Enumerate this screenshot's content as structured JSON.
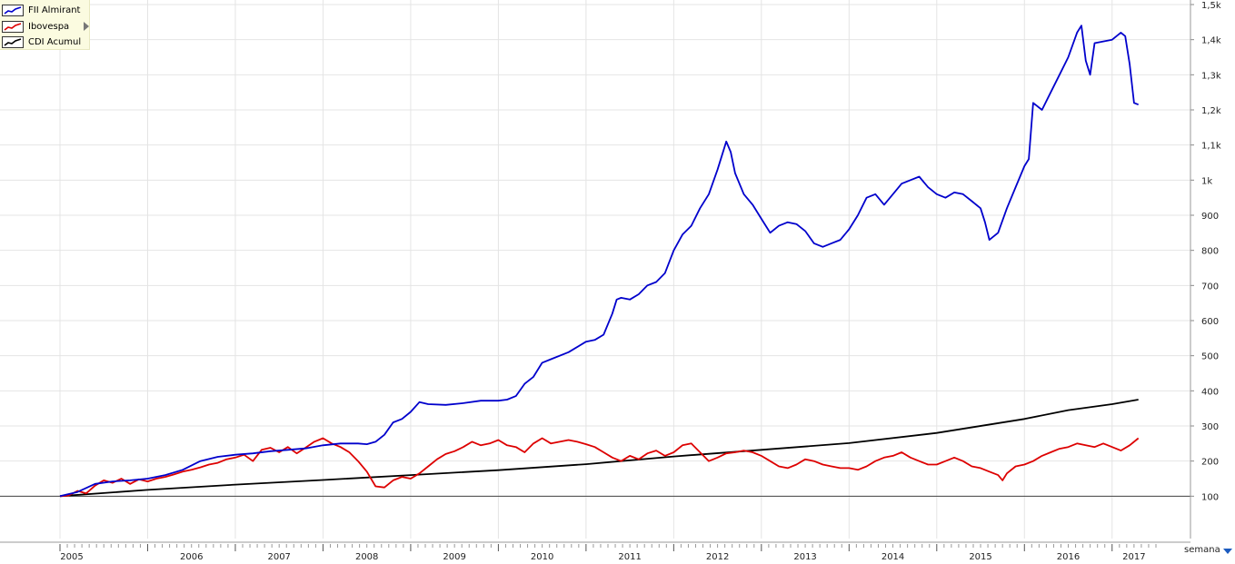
{
  "chart_data": {
    "type": "line",
    "title": "",
    "xlabel": "",
    "ylabel": "",
    "xlim": [
      2005.0,
      2017.5
    ],
    "ylim": [
      0,
      1500
    ],
    "grid": true,
    "legend_position": "top-left",
    "reference_line": 100,
    "y_ticks": [
      {
        "value": 100,
        "label": "100"
      },
      {
        "value": 200,
        "label": "200"
      },
      {
        "value": 300,
        "label": "300"
      },
      {
        "value": 400,
        "label": "400"
      },
      {
        "value": 500,
        "label": "500"
      },
      {
        "value": 600,
        "label": "600"
      },
      {
        "value": 700,
        "label": "700"
      },
      {
        "value": 800,
        "label": "800"
      },
      {
        "value": 900,
        "label": "900"
      },
      {
        "value": 1000,
        "label": "1k"
      },
      {
        "value": 1100,
        "label": "1,1k"
      },
      {
        "value": 1200,
        "label": "1,2k"
      },
      {
        "value": 1300,
        "label": "1,3k"
      },
      {
        "value": 1400,
        "label": "1,4k"
      },
      {
        "value": 1500,
        "label": "1,5k"
      }
    ],
    "x_ticks": [
      {
        "value": 2005.0,
        "label": "2005"
      },
      {
        "value": 2006.0,
        "label": "2006"
      },
      {
        "value": 2007.0,
        "label": "2007"
      },
      {
        "value": 2008.0,
        "label": "2008"
      },
      {
        "value": 2009.0,
        "label": "2009"
      },
      {
        "value": 2010.0,
        "label": "2010"
      },
      {
        "value": 2011.0,
        "label": "2011"
      },
      {
        "value": 2012.0,
        "label": "2012"
      },
      {
        "value": 2013.0,
        "label": "2013"
      },
      {
        "value": 2014.0,
        "label": "2014"
      },
      {
        "value": 2015.0,
        "label": "2015"
      },
      {
        "value": 2016.0,
        "label": "2016"
      },
      {
        "value": 2017.0,
        "label": "2017"
      }
    ],
    "series": [
      {
        "name": "FII Almirant",
        "color": "#0000cc",
        "points": [
          [
            2005.0,
            100
          ],
          [
            2005.2,
            112
          ],
          [
            2005.4,
            135
          ],
          [
            2005.6,
            142
          ],
          [
            2005.8,
            145
          ],
          [
            2006.0,
            150
          ],
          [
            2006.2,
            160
          ],
          [
            2006.4,
            175
          ],
          [
            2006.6,
            200
          ],
          [
            2006.8,
            212
          ],
          [
            2007.0,
            218
          ],
          [
            2007.2,
            222
          ],
          [
            2007.4,
            228
          ],
          [
            2007.6,
            232
          ],
          [
            2007.8,
            236
          ],
          [
            2008.0,
            245
          ],
          [
            2008.2,
            250
          ],
          [
            2008.4,
            250
          ],
          [
            2008.5,
            248
          ],
          [
            2008.6,
            255
          ],
          [
            2008.7,
            275
          ],
          [
            2008.8,
            310
          ],
          [
            2008.9,
            320
          ],
          [
            2009.0,
            340
          ],
          [
            2009.1,
            368
          ],
          [
            2009.2,
            362
          ],
          [
            2009.4,
            360
          ],
          [
            2009.6,
            365
          ],
          [
            2009.8,
            372
          ],
          [
            2010.0,
            372
          ],
          [
            2010.1,
            375
          ],
          [
            2010.2,
            385
          ],
          [
            2010.3,
            420
          ],
          [
            2010.4,
            440
          ],
          [
            2010.5,
            480
          ],
          [
            2010.6,
            490
          ],
          [
            2010.8,
            510
          ],
          [
            2011.0,
            540
          ],
          [
            2011.1,
            545
          ],
          [
            2011.2,
            560
          ],
          [
            2011.3,
            620
          ],
          [
            2011.35,
            660
          ],
          [
            2011.4,
            665
          ],
          [
            2011.5,
            660
          ],
          [
            2011.6,
            675
          ],
          [
            2011.7,
            700
          ],
          [
            2011.8,
            710
          ],
          [
            2011.9,
            735
          ],
          [
            2012.0,
            800
          ],
          [
            2012.1,
            845
          ],
          [
            2012.2,
            870
          ],
          [
            2012.3,
            920
          ],
          [
            2012.4,
            960
          ],
          [
            2012.5,
            1030
          ],
          [
            2012.6,
            1110
          ],
          [
            2012.65,
            1080
          ],
          [
            2012.7,
            1020
          ],
          [
            2012.8,
            960
          ],
          [
            2012.9,
            930
          ],
          [
            2013.0,
            890
          ],
          [
            2013.1,
            850
          ],
          [
            2013.2,
            870
          ],
          [
            2013.3,
            880
          ],
          [
            2013.4,
            875
          ],
          [
            2013.5,
            855
          ],
          [
            2013.6,
            820
          ],
          [
            2013.7,
            810
          ],
          [
            2013.8,
            820
          ],
          [
            2013.9,
            830
          ],
          [
            2014.0,
            860
          ],
          [
            2014.1,
            900
          ],
          [
            2014.2,
            950
          ],
          [
            2014.3,
            960
          ],
          [
            2014.4,
            930
          ],
          [
            2014.5,
            960
          ],
          [
            2014.6,
            990
          ],
          [
            2014.7,
            1000
          ],
          [
            2014.8,
            1010
          ],
          [
            2014.9,
            980
          ],
          [
            2015.0,
            960
          ],
          [
            2015.1,
            950
          ],
          [
            2015.2,
            965
          ],
          [
            2015.3,
            960
          ],
          [
            2015.4,
            940
          ],
          [
            2015.5,
            920
          ],
          [
            2015.55,
            880
          ],
          [
            2015.6,
            830
          ],
          [
            2015.7,
            850
          ],
          [
            2015.8,
            920
          ],
          [
            2015.9,
            980
          ],
          [
            2016.0,
            1040
          ],
          [
            2016.05,
            1060
          ],
          [
            2016.1,
            1220
          ],
          [
            2016.2,
            1200
          ],
          [
            2016.3,
            1250
          ],
          [
            2016.4,
            1300
          ],
          [
            2016.5,
            1350
          ],
          [
            2016.6,
            1420
          ],
          [
            2016.65,
            1440
          ],
          [
            2016.7,
            1340
          ],
          [
            2016.75,
            1300
          ],
          [
            2016.8,
            1390
          ],
          [
            2016.9,
            1395
          ],
          [
            2017.0,
            1400
          ],
          [
            2017.1,
            1420
          ],
          [
            2017.15,
            1410
          ],
          [
            2017.2,
            1330
          ],
          [
            2017.25,
            1220
          ],
          [
            2017.3,
            1215
          ]
        ]
      },
      {
        "name": "Ibovespa",
        "color": "#dd0000",
        "points": [
          [
            2005.0,
            100
          ],
          [
            2005.1,
            102
          ],
          [
            2005.2,
            115
          ],
          [
            2005.3,
            108
          ],
          [
            2005.4,
            130
          ],
          [
            2005.5,
            145
          ],
          [
            2005.6,
            138
          ],
          [
            2005.7,
            150
          ],
          [
            2005.8,
            135
          ],
          [
            2005.9,
            148
          ],
          [
            2006.0,
            142
          ],
          [
            2006.1,
            150
          ],
          [
            2006.2,
            155
          ],
          [
            2006.3,
            162
          ],
          [
            2006.4,
            170
          ],
          [
            2006.5,
            175
          ],
          [
            2006.6,
            182
          ],
          [
            2006.7,
            190
          ],
          [
            2006.8,
            195
          ],
          [
            2006.9,
            205
          ],
          [
            2007.0,
            210
          ],
          [
            2007.1,
            218
          ],
          [
            2007.2,
            200
          ],
          [
            2007.3,
            232
          ],
          [
            2007.4,
            238
          ],
          [
            2007.5,
            225
          ],
          [
            2007.6,
            240
          ],
          [
            2007.7,
            222
          ],
          [
            2007.8,
            238
          ],
          [
            2007.9,
            255
          ],
          [
            2008.0,
            265
          ],
          [
            2008.1,
            250
          ],
          [
            2008.2,
            240
          ],
          [
            2008.3,
            225
          ],
          [
            2008.4,
            200
          ],
          [
            2008.5,
            170
          ],
          [
            2008.6,
            128
          ],
          [
            2008.7,
            125
          ],
          [
            2008.8,
            145
          ],
          [
            2008.9,
            155
          ],
          [
            2009.0,
            150
          ],
          [
            2009.1,
            165
          ],
          [
            2009.2,
            185
          ],
          [
            2009.3,
            205
          ],
          [
            2009.4,
            220
          ],
          [
            2009.5,
            228
          ],
          [
            2009.6,
            240
          ],
          [
            2009.7,
            255
          ],
          [
            2009.8,
            245
          ],
          [
            2009.9,
            250
          ],
          [
            2010.0,
            260
          ],
          [
            2010.1,
            245
          ],
          [
            2010.2,
            240
          ],
          [
            2010.3,
            225
          ],
          [
            2010.4,
            250
          ],
          [
            2010.5,
            265
          ],
          [
            2010.6,
            250
          ],
          [
            2010.7,
            255
          ],
          [
            2010.8,
            260
          ],
          [
            2010.9,
            255
          ],
          [
            2011.0,
            248
          ],
          [
            2011.1,
            240
          ],
          [
            2011.2,
            225
          ],
          [
            2011.3,
            210
          ],
          [
            2011.4,
            200
          ],
          [
            2011.5,
            215
          ],
          [
            2011.6,
            205
          ],
          [
            2011.7,
            222
          ],
          [
            2011.8,
            230
          ],
          [
            2011.9,
            215
          ],
          [
            2012.0,
            225
          ],
          [
            2012.1,
            245
          ],
          [
            2012.2,
            250
          ],
          [
            2012.3,
            225
          ],
          [
            2012.4,
            200
          ],
          [
            2012.5,
            210
          ],
          [
            2012.6,
            222
          ],
          [
            2012.7,
            225
          ],
          [
            2012.8,
            230
          ],
          [
            2012.9,
            225
          ],
          [
            2013.0,
            215
          ],
          [
            2013.1,
            200
          ],
          [
            2013.2,
            185
          ],
          [
            2013.3,
            180
          ],
          [
            2013.4,
            190
          ],
          [
            2013.5,
            205
          ],
          [
            2013.6,
            200
          ],
          [
            2013.7,
            190
          ],
          [
            2013.8,
            185
          ],
          [
            2013.9,
            180
          ],
          [
            2014.0,
            180
          ],
          [
            2014.1,
            175
          ],
          [
            2014.2,
            185
          ],
          [
            2014.3,
            200
          ],
          [
            2014.4,
            210
          ],
          [
            2014.5,
            215
          ],
          [
            2014.6,
            225
          ],
          [
            2014.7,
            210
          ],
          [
            2014.8,
            200
          ],
          [
            2014.9,
            190
          ],
          [
            2015.0,
            190
          ],
          [
            2015.1,
            200
          ],
          [
            2015.2,
            210
          ],
          [
            2015.3,
            200
          ],
          [
            2015.4,
            185
          ],
          [
            2015.5,
            180
          ],
          [
            2015.6,
            170
          ],
          [
            2015.7,
            160
          ],
          [
            2015.75,
            145
          ],
          [
            2015.8,
            165
          ],
          [
            2015.9,
            185
          ],
          [
            2016.0,
            190
          ],
          [
            2016.1,
            200
          ],
          [
            2016.2,
            215
          ],
          [
            2016.3,
            225
          ],
          [
            2016.4,
            235
          ],
          [
            2016.5,
            240
          ],
          [
            2016.6,
            250
          ],
          [
            2016.7,
            245
          ],
          [
            2016.8,
            240
          ],
          [
            2016.9,
            250
          ],
          [
            2017.0,
            240
          ],
          [
            2017.1,
            230
          ],
          [
            2017.2,
            245
          ],
          [
            2017.3,
            265
          ]
        ]
      },
      {
        "name": "CDI Acumul",
        "color": "#000000",
        "points": [
          [
            2005.0,
            100
          ],
          [
            2006.0,
            118
          ],
          [
            2007.0,
            133
          ],
          [
            2008.0,
            146
          ],
          [
            2009.0,
            160
          ],
          [
            2010.0,
            174
          ],
          [
            2011.0,
            191
          ],
          [
            2012.0,
            213
          ],
          [
            2013.0,
            232
          ],
          [
            2014.0,
            251
          ],
          [
            2015.0,
            280
          ],
          [
            2016.0,
            320
          ],
          [
            2016.5,
            345
          ],
          [
            2017.0,
            362
          ],
          [
            2017.3,
            375
          ]
        ]
      }
    ]
  },
  "legend": {
    "items": [
      {
        "label": "FII Almirant",
        "color": "#0000cc"
      },
      {
        "label": "Ibovespa",
        "color": "#dd0000"
      },
      {
        "label": "CDI Acumul",
        "color": "#000000"
      }
    ]
  },
  "period_selector": {
    "label": "semana"
  }
}
